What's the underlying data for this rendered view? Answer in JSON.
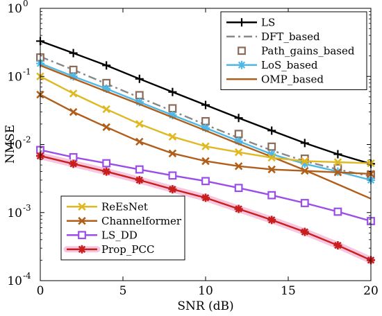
{
  "chart_data": {
    "type": "line",
    "xlabel": "SNR (dB)",
    "ylabel": "NMSE",
    "xlim": [
      0,
      20
    ],
    "ylim": [
      0.0001,
      1
    ],
    "yscale": "log",
    "grid": false,
    "x_ticks": [
      {
        "value": 0,
        "label": "0"
      },
      {
        "value": 5,
        "label": "5"
      },
      {
        "value": 10,
        "label": "10"
      },
      {
        "value": 15,
        "label": "15"
      },
      {
        "value": 20,
        "label": "20"
      }
    ],
    "y_ticks": [
      {
        "value": 1,
        "label": "10",
        "exp": "0"
      },
      {
        "value": 0.1,
        "label": "10",
        "exp": "-1"
      },
      {
        "value": 0.01,
        "label": "10",
        "exp": "-2"
      },
      {
        "value": 0.001,
        "label": "10",
        "exp": "-3"
      },
      {
        "value": 0.0001,
        "label": "10",
        "exp": "-4"
      }
    ],
    "legends": [
      {
        "placement": "top-right",
        "series": [
          "LS",
          "DFT_based",
          "Path_gains_based",
          "LoS_based",
          "OMP_based"
        ]
      },
      {
        "placement": "bottom-left",
        "series": [
          "ReEsNet",
          "Channelformer",
          "LS_DD",
          "Prop_PCC"
        ]
      }
    ],
    "series": [
      {
        "name": "LS",
        "color": "#000000",
        "style": "solid",
        "marker": "plus",
        "x": [
          0,
          2,
          4,
          6,
          8,
          10,
          12,
          14,
          16,
          18,
          20
        ],
        "y": [
          0.33,
          0.22,
          0.145,
          0.092,
          0.059,
          0.038,
          0.0245,
          0.016,
          0.0105,
          0.0072,
          0.0052
        ]
      },
      {
        "name": "DFT_based",
        "color": "#888888",
        "style": "dashdot",
        "marker": "none",
        "x": [
          0,
          2,
          4,
          6,
          8,
          10,
          12,
          14,
          16,
          18,
          20
        ],
        "y": [
          0.195,
          0.125,
          0.078,
          0.049,
          0.031,
          0.0195,
          0.0125,
          0.0082,
          0.0057,
          0.0043,
          0.0034
        ]
      },
      {
        "name": "Path_gains_based",
        "color": "#8a6a5a",
        "style": "none",
        "marker": "square",
        "x": [
          0,
          2,
          4,
          6,
          8,
          10,
          12,
          14,
          16,
          18,
          20
        ],
        "y": [
          0.19,
          0.125,
          0.08,
          0.053,
          0.034,
          0.022,
          0.0143,
          0.0093,
          0.0062,
          0.0045,
          0.0036
        ]
      },
      {
        "name": "LoS_based",
        "color": "#4db8e8",
        "style": "solid",
        "marker": "asterisk",
        "x": [
          0,
          2,
          4,
          6,
          8,
          10,
          12,
          14,
          16,
          18,
          20
        ],
        "y": [
          0.155,
          0.1,
          0.066,
          0.042,
          0.027,
          0.0175,
          0.0112,
          0.0072,
          0.0052,
          0.004,
          0.003
        ]
      },
      {
        "name": "OMP_based",
        "color": "#b05e1a",
        "style": "solid",
        "marker": "none",
        "x": [
          0,
          2,
          4,
          6,
          8,
          10,
          12,
          14,
          16,
          18,
          20
        ],
        "y": [
          0.145,
          0.093,
          0.06,
          0.039,
          0.025,
          0.016,
          0.0102,
          0.0066,
          0.0042,
          0.0026,
          0.0016
        ]
      },
      {
        "name": "ReEsNet",
        "color": "#e0b822",
        "style": "solid",
        "marker": "x",
        "x": [
          0,
          2,
          4,
          6,
          8,
          10,
          12,
          14,
          16,
          18,
          20
        ],
        "y": [
          0.1,
          0.056,
          0.033,
          0.02,
          0.013,
          0.0094,
          0.0077,
          0.0064,
          0.0057,
          0.0055,
          0.0053
        ]
      },
      {
        "name": "Channelformer",
        "color": "#b05e1a",
        "style": "solid",
        "marker": "x",
        "x": [
          0,
          2,
          4,
          6,
          8,
          10,
          12,
          14,
          16,
          18,
          20
        ],
        "y": [
          0.054,
          0.03,
          0.018,
          0.011,
          0.0074,
          0.0057,
          0.0048,
          0.0043,
          0.0041,
          0.0039,
          0.0037
        ]
      },
      {
        "name": "LS_DD",
        "color": "#9b4de8",
        "style": "solid",
        "marker": "square",
        "x": [
          0,
          2,
          4,
          6,
          8,
          10,
          12,
          14,
          16,
          18,
          20
        ],
        "y": [
          0.0083,
          0.0065,
          0.0053,
          0.0043,
          0.0035,
          0.0029,
          0.0023,
          0.0018,
          0.00138,
          0.00103,
          0.00075
        ]
      },
      {
        "name": "Prop_PCC",
        "color": "#c81e1e",
        "style": "solid",
        "marker": "star",
        "x": [
          0,
          2,
          4,
          6,
          8,
          10,
          12,
          14,
          16,
          18,
          20
        ],
        "y": [
          0.0068,
          0.0052,
          0.004,
          0.003,
          0.0022,
          0.00165,
          0.00113,
          0.00078,
          0.00052,
          0.00033,
          0.0002
        ]
      }
    ]
  }
}
